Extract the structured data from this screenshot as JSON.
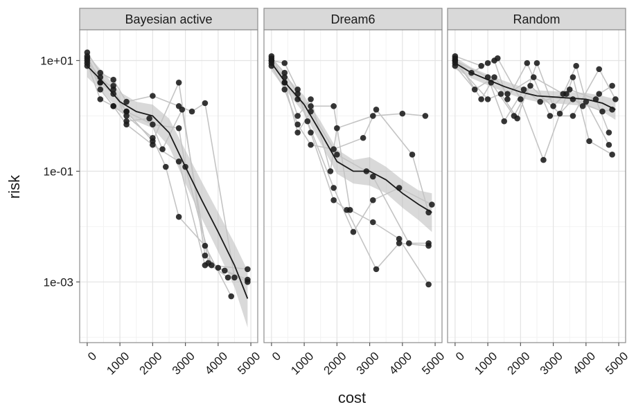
{
  "axes": {
    "x_label": "cost",
    "y_label": "risk"
  },
  "chart_data": [
    {
      "type": "line",
      "title": "Bayesian active",
      "log_y": true,
      "grid": true,
      "xlim": [
        -230,
        5210
      ],
      "xticks": [
        0,
        1000,
        2000,
        3000,
        4000,
        5000
      ],
      "x_minor_ticks": [
        500,
        1500,
        2500,
        3500,
        4500
      ],
      "ylim": [
        8e-05,
        36
      ],
      "yticks": [
        {
          "value": 0.001,
          "label": "1e-03"
        },
        {
          "value": 0.1,
          "label": "1e-01"
        },
        {
          "value": 10,
          "label": "1e+01"
        }
      ],
      "y_minor_ticks": [
        0.0001,
        0.01,
        1
      ],
      "series": [
        {
          "color": "#1a1a1a",
          "x": [
            0,
            400,
            800,
            1200,
            2000,
            2800,
            3600,
            4000,
            4900
          ],
          "values": [
            12,
            4,
            2.5,
            1.2,
            0.35,
            4,
            0.003,
            0.0018,
            0.0011
          ]
        },
        {
          "color": "#1a1a1a",
          "x": [
            0,
            400,
            800,
            1200,
            2000,
            2800,
            3600,
            4200,
            4900
          ],
          "values": [
            9,
            2,
            1.5,
            0.7,
            0.3,
            0.15,
            0.002,
            0.0016,
            0.001
          ]
        },
        {
          "color": "#1a1a1a",
          "x": [
            0,
            400,
            800,
            1200,
            2000,
            2800,
            3200,
            3600,
            4500
          ],
          "values": [
            14,
            6,
            4.5,
            1.8,
            2.3,
            1.5,
            1.2,
            1.7,
            0.0012
          ]
        },
        {
          "color": "#1a1a1a",
          "x": [
            0,
            400,
            800,
            1200,
            2000,
            2400,
            2800,
            3600,
            4400
          ],
          "values": [
            11,
            3,
            1.5,
            1,
            0.4,
            0.12,
            0.015,
            0.0045,
            0.00055
          ]
        },
        {
          "color": "#1a1a1a",
          "x": [
            0,
            400,
            800,
            1200,
            2000,
            2800,
            3000,
            3800,
            4900
          ],
          "values": [
            10,
            5,
            3,
            1.2,
            0.7,
            0.6,
            0.12,
            0.002,
            0.0017
          ]
        },
        {
          "color": "#1a1a1a",
          "x": [
            0,
            400,
            800,
            1200,
            1900,
            2300,
            2900,
            3700,
            4300
          ],
          "values": [
            8,
            4,
            3.5,
            0.8,
            0.9,
            0.25,
            1.3,
            0.0022,
            0.0012
          ]
        }
      ],
      "smooth": {
        "color": "#1a1a1a",
        "x": [
          0,
          500,
          1000,
          1500,
          2000,
          2500,
          3000,
          3500,
          4000,
          4500,
          4900
        ],
        "values": [
          8,
          4,
          1.8,
          1.2,
          1.0,
          0.5,
          0.12,
          0.03,
          0.008,
          0.002,
          0.0005
        ],
        "lower": [
          5,
          2.6,
          1.2,
          0.8,
          0.6,
          0.28,
          0.06,
          0.014,
          0.0035,
          0.0008,
          0.00015
        ],
        "upper": [
          13,
          6,
          2.7,
          1.8,
          1.6,
          0.9,
          0.24,
          0.065,
          0.018,
          0.005,
          0.0016
        ]
      }
    },
    {
      "type": "line",
      "title": "Dream6",
      "log_y": true,
      "grid": true,
      "xlim": [
        -230,
        5210
      ],
      "xticks": [
        0,
        1000,
        2000,
        3000,
        4000,
        5000
      ],
      "x_minor_ticks": [
        500,
        1500,
        2500,
        3500,
        4500
      ],
      "series": [
        {
          "color": "#1a1a1a",
          "x": [
            0,
            400,
            800,
            1200,
            1900,
            2400,
            3100,
            3900,
            4800
          ],
          "values": [
            12,
            4,
            2,
            1.5,
            1.5,
            0.02,
            0.012,
            0.006,
            0.0009
          ]
        },
        {
          "color": "#1a1a1a",
          "x": [
            0,
            400,
            800,
            1200,
            1900,
            2300,
            3200,
            3900,
            4800
          ],
          "values": [
            10,
            9,
            3,
            0.5,
            0.03,
            0.02,
            0.0017,
            0.005,
            0.0045
          ]
        },
        {
          "color": "#1a1a1a",
          "x": [
            0,
            400,
            800,
            1200,
            1800,
            2000,
            3100,
            4000,
            4700
          ],
          "values": [
            9,
            5,
            1,
            2,
            0.1,
            0.6,
            1,
            1.1,
            1
          ]
        },
        {
          "color": "#1a1a1a",
          "x": [
            0,
            400,
            800,
            1100,
            1900,
            2500,
            3100,
            3900,
            4900
          ],
          "values": [
            11,
            6,
            2.5,
            0.8,
            0.05,
            0.008,
            0.03,
            0.05,
            0.025
          ]
        },
        {
          "color": "#1a1a1a",
          "x": [
            0,
            400,
            800,
            1200,
            1900,
            2800,
            3200,
            4300,
            4800
          ],
          "values": [
            8,
            3,
            0.7,
            0.3,
            0.25,
            0.4,
            1.3,
            0.2,
            0.018
          ]
        },
        {
          "color": "#1a1a1a",
          "x": [
            0,
            400,
            800,
            1200,
            2000,
            2900,
            3100,
            4200,
            4800
          ],
          "values": [
            10,
            4,
            0.5,
            1.2,
            0.2,
            0.1,
            0.08,
            0.005,
            0.005
          ]
        }
      ],
      "smooth": {
        "color": "#1a1a1a",
        "x": [
          0,
          500,
          1000,
          1500,
          2000,
          2500,
          3000,
          3500,
          4000,
          4500,
          4900
        ],
        "values": [
          9,
          3.5,
          1.6,
          0.5,
          0.15,
          0.1,
          0.1,
          0.07,
          0.04,
          0.025,
          0.018
        ],
        "lower": [
          6.5,
          2.6,
          1.1,
          0.32,
          0.09,
          0.06,
          0.055,
          0.04,
          0.022,
          0.013,
          0.008
        ],
        "upper": [
          12,
          4.8,
          2.3,
          0.8,
          0.25,
          0.16,
          0.18,
          0.12,
          0.07,
          0.045,
          0.04
        ]
      }
    },
    {
      "type": "line",
      "title": "Random",
      "log_y": true,
      "grid": true,
      "xlim": [
        -230,
        5210
      ],
      "xticks": [
        0,
        1000,
        2000,
        3000,
        4000,
        5000
      ],
      "x_minor_ticks": [
        500,
        1500,
        2500,
        3500,
        4500
      ],
      "series": [
        {
          "color": "#1a1a1a",
          "x": [
            0,
            800,
            1200,
            1600,
            2200,
            2900,
            3600,
            4400,
            4900
          ],
          "values": [
            12,
            8,
            10,
            2,
            9,
            1,
            1,
            7,
            2
          ]
        },
        {
          "color": "#1a1a1a",
          "x": [
            0,
            500,
            1000,
            1300,
            2000,
            2700,
            3600,
            4100,
            4800
          ],
          "values": [
            10,
            6,
            9,
            11,
            2,
            0.16,
            5,
            0.35,
            0.2
          ]
        },
        {
          "color": "#1a1a1a",
          "x": [
            0,
            1000,
            1400,
            1900,
            2500,
            3000,
            3500,
            4300,
            4700
          ],
          "values": [
            9,
            2,
            2.5,
            0.9,
            9,
            1.5,
            3,
            2,
            0.5
          ]
        },
        {
          "color": "#1a1a1a",
          "x": [
            0,
            800,
            1100,
            1800,
            2300,
            3200,
            3600,
            4500,
            4800
          ],
          "values": [
            11,
            2,
            4,
            1,
            3.5,
            1.1,
            2,
            1.2,
            1.3
          ]
        },
        {
          "color": "#1a1a1a",
          "x": [
            0,
            600,
            1200,
            1600,
            2400,
            3300,
            3700,
            4000,
            4700
          ],
          "values": [
            8,
            3,
            5,
            2.5,
            5,
            2.5,
            8,
            1.8,
            0.3
          ]
        },
        {
          "color": "#1a1a1a",
          "x": [
            0,
            1000,
            1500,
            2100,
            2600,
            3400,
            3900,
            4400,
            4800
          ],
          "values": [
            10,
            5,
            0.8,
            3,
            1.8,
            2.5,
            1.5,
            2.5,
            3.5
          ]
        }
      ],
      "smooth": {
        "color": "#1a1a1a",
        "x": [
          0,
          500,
          1000,
          1500,
          2000,
          2500,
          3000,
          3500,
          4000,
          4500,
          4900
        ],
        "values": [
          9,
          6,
          4.5,
          3.4,
          2.7,
          2.3,
          2.2,
          2.1,
          2,
          1.7,
          1.3
        ],
        "lower": [
          7,
          4.8,
          3.6,
          2.7,
          2.1,
          1.8,
          1.7,
          1.6,
          1.5,
          1.2,
          0.85
        ],
        "upper": [
          11.5,
          7.5,
          5.6,
          4.3,
          3.4,
          2.9,
          2.8,
          2.7,
          2.6,
          2.3,
          2
        ]
      }
    }
  ]
}
